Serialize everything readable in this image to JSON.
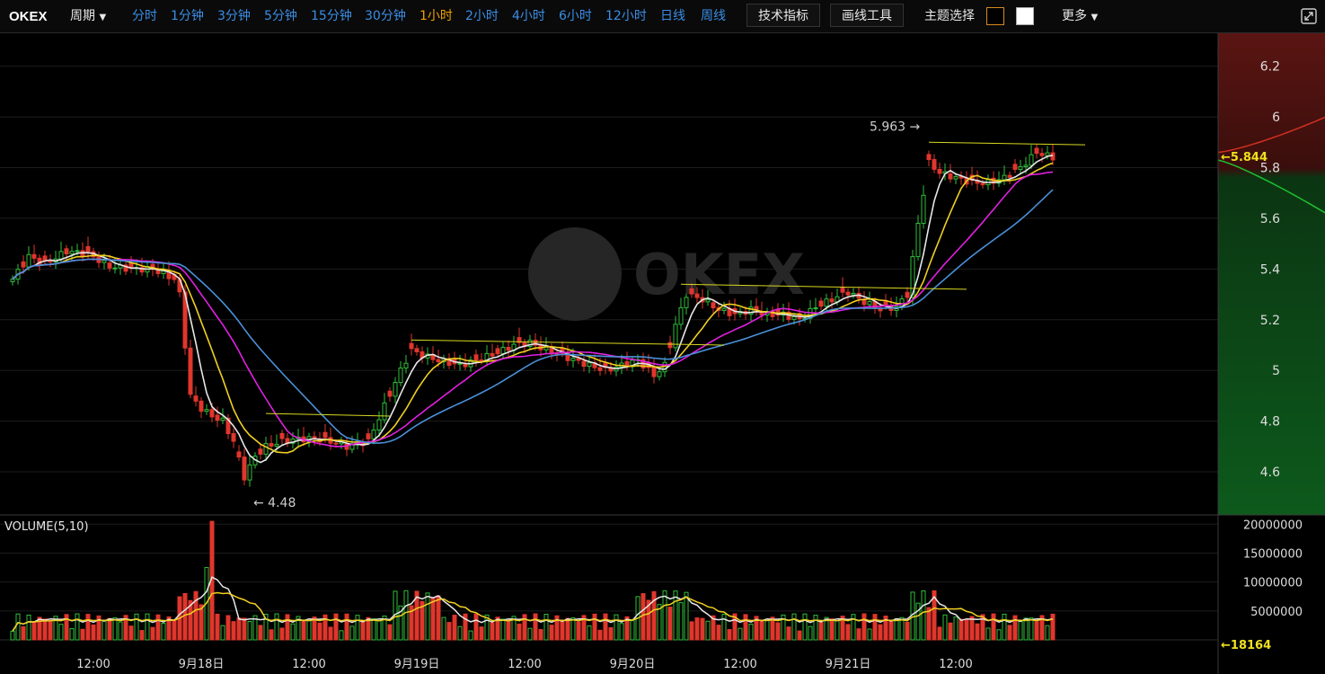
{
  "toolbar": {
    "brand": "OKEX",
    "period_label": "周期",
    "periods": [
      "分时",
      "1分钟",
      "3分钟",
      "5分钟",
      "15分钟",
      "30分钟",
      "1小时",
      "2小时",
      "4小时",
      "6小时",
      "12小时",
      "日线",
      "周线"
    ],
    "active_period": "1小时",
    "indicator_button": "技术指标",
    "drawing_button": "画线工具",
    "theme_label": "主题选择",
    "more_label": "更多"
  },
  "colors": {
    "up": "#2fbf3a",
    "down": "#e0362c",
    "ma_white": "#e8e8e8",
    "ma_yellow": "#f0d020",
    "ma_magenta": "#e020e0",
    "ma_blue": "#4a90d8",
    "trendline": "#d8d820",
    "active_tab": "#f0a000",
    "link": "#3a8ee6"
  },
  "chart_data": {
    "type": "candlestick",
    "watermark": "OKEX",
    "price_axis": {
      "ticks": [
        4.6,
        4.8,
        5,
        5.2,
        5.4,
        5.6,
        5.8,
        6,
        6.2
      ],
      "range": [
        4.43,
        6.33
      ]
    },
    "last_price": "5.844",
    "high_marker": "5.963",
    "low_marker": "4.48",
    "volume": {
      "label": "VOLUME(5,10)",
      "ticks": [
        "20000000",
        "15000000",
        "10000000",
        "5000000"
      ],
      "tick_values": [
        20000000,
        15000000,
        10000000,
        5000000
      ],
      "range": [
        0,
        21600000
      ],
      "last_volume": "18164"
    },
    "x_labels": [
      "12:00",
      "9月18日",
      "12:00",
      "9月19日",
      "12:00",
      "9月20日",
      "12:00",
      "9月21日",
      "12:00"
    ],
    "x_label_bars": [
      15,
      35,
      55,
      75,
      95,
      115,
      135,
      155,
      175
    ],
    "anchors": [
      [
        0,
        5.36
      ],
      [
        3,
        5.45
      ],
      [
        6,
        5.42
      ],
      [
        10,
        5.47
      ],
      [
        14,
        5.46
      ],
      [
        18,
        5.41
      ],
      [
        22,
        5.4
      ],
      [
        26,
        5.4
      ],
      [
        30,
        5.36
      ],
      [
        31,
        5.3
      ],
      [
        32,
        5.1
      ],
      [
        33,
        4.9
      ],
      [
        35,
        4.85
      ],
      [
        37,
        4.82
      ],
      [
        39,
        4.8
      ],
      [
        41,
        4.72
      ],
      [
        43,
        4.58
      ],
      [
        45,
        4.66
      ],
      [
        47,
        4.7
      ],
      [
        50,
        4.72
      ],
      [
        53,
        4.73
      ],
      [
        56,
        4.73
      ],
      [
        59,
        4.72
      ],
      [
        62,
        4.7
      ],
      [
        66,
        4.72
      ],
      [
        69,
        4.86
      ],
      [
        72,
        5.0
      ],
      [
        74,
        5.08
      ],
      [
        76,
        5.06
      ],
      [
        79,
        5.04
      ],
      [
        83,
        5.02
      ],
      [
        86,
        5.04
      ],
      [
        90,
        5.07
      ],
      [
        93,
        5.1
      ],
      [
        96,
        5.11
      ],
      [
        99,
        5.08
      ],
      [
        103,
        5.05
      ],
      [
        107,
        5.02
      ],
      [
        110,
        5.0
      ],
      [
        113,
        5.02
      ],
      [
        116,
        5.04
      ],
      [
        119,
        4.98
      ],
      [
        121,
        5.02
      ],
      [
        123,
        5.18
      ],
      [
        125,
        5.3
      ],
      [
        128,
        5.28
      ],
      [
        131,
        5.24
      ],
      [
        134,
        5.22
      ],
      [
        137,
        5.24
      ],
      [
        140,
        5.22
      ],
      [
        143,
        5.22
      ],
      [
        146,
        5.2
      ],
      [
        149,
        5.25
      ],
      [
        152,
        5.28
      ],
      [
        155,
        5.31
      ],
      [
        158,
        5.27
      ],
      [
        161,
        5.24
      ],
      [
        164,
        5.25
      ],
      [
        166,
        5.3
      ],
      [
        168,
        5.58
      ],
      [
        170,
        5.82
      ],
      [
        172,
        5.78
      ],
      [
        175,
        5.76
      ],
      [
        178,
        5.74
      ],
      [
        181,
        5.74
      ],
      [
        184,
        5.76
      ],
      [
        187,
        5.8
      ],
      [
        190,
        5.86
      ],
      [
        193,
        5.84
      ]
    ],
    "ma_periods": [
      5,
      10,
      20,
      30
    ],
    "bar_count": 194
  }
}
